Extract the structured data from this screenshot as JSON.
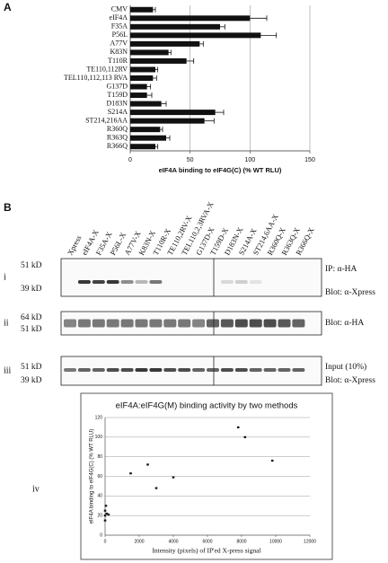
{
  "panel_labels": [
    "A",
    "B"
  ],
  "chart_data": [
    {
      "type": "hbar",
      "xlabel": "eIF4A binding to eIF4G(C) (% WT RLU)",
      "categories": [
        "CMV",
        "eIF4A",
        "F35A",
        "P56L",
        "A77V",
        "K83N",
        "T110R",
        "TE110,112RV",
        "TEL110,112,113 RVA",
        "G137D",
        "T159D",
        "D183N",
        "S214A",
        "ST214,216AA",
        "R360Q",
        "R363Q",
        "R366Q"
      ],
      "values": [
        19,
        100,
        75,
        109,
        58,
        32,
        47,
        21,
        19,
        14,
        14,
        26,
        71,
        62,
        25,
        30,
        21
      ],
      "errors": [
        2,
        14,
        4,
        13,
        3,
        2,
        6,
        2,
        3,
        3,
        4,
        4,
        7,
        8,
        2,
        3,
        2
      ],
      "color": "#111111",
      "xlim": [
        0,
        150
      ],
      "xticks": [
        0,
        50,
        100,
        150
      ],
      "grid": true
    },
    {
      "type": "scatter",
      "panel": "iv",
      "title": "eIF4A:eIF4G(M) binding activity by two methods",
      "xlabel": "Intensity (pixels) of IP'ed X-press signal",
      "ylabel": "eIF4A binding to eIF4G(C) (% WT RLU)",
      "x": [
        0,
        0,
        50,
        100,
        200,
        0,
        1500,
        2500,
        3000,
        4000,
        7800,
        8200,
        9800
      ],
      "y": [
        20,
        25,
        30,
        22,
        21,
        15,
        63,
        72,
        48,
        59,
        110,
        100,
        76
      ],
      "color": "#111111",
      "xlim": [
        0,
        12000
      ],
      "xticks": [
        0,
        2000,
        4000,
        6000,
        8000,
        10000,
        12000
      ],
      "ylim": [
        0,
        120
      ],
      "yticks": [
        0,
        20,
        40,
        60,
        80,
        100,
        120
      ],
      "grid": true
    }
  ],
  "blots": {
    "lanes": [
      "Xpress",
      "eIF4A-X",
      "F35A-X",
      "P56L-X",
      "A77V-X",
      "K83N-X",
      "T110R-X",
      "TE110,2RV-X",
      "TEL110,2,3RVA-X",
      "G137D-X",
      "T159D-X",
      "D183N-X",
      "S214A-X",
      "ST214,6AA-X",
      "R360Q-X",
      "R363Q-X",
      "R366Q-X"
    ],
    "panels": [
      {
        "roman": "i",
        "markers": [
          "51 kD",
          "39 kD"
        ],
        "notes": [
          "IP: α-HA",
          "Blot: α-Xpress"
        ]
      },
      {
        "roman": "ii",
        "markers": [
          "64 kD",
          "51 kD"
        ],
        "notes": [
          "Blot: α-HA"
        ]
      },
      {
        "roman": "iii",
        "markers": [
          "51 kD",
          "39 kD"
        ],
        "notes": [
          "Input (10%)",
          "Blot: α-Xpress"
        ]
      }
    ]
  }
}
